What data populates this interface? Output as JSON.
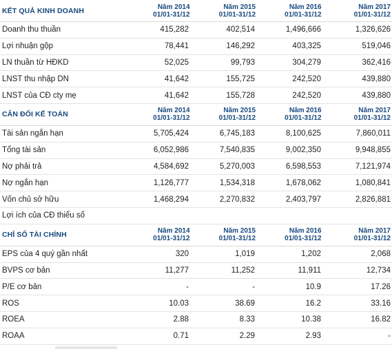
{
  "income": {
    "title": "KẾT QUẢ KINH DOANH",
    "columns": [
      {
        "year": "Năm 2014",
        "period": "01/01-31/12"
      },
      {
        "year": "Năm 2015",
        "period": "01/01-31/12"
      },
      {
        "year": "Năm 2016",
        "period": "01/01-31/12"
      },
      {
        "year": "Năm 2017",
        "period": "01/01-31/12"
      }
    ],
    "rows": [
      {
        "label": "Doanh thu thuần",
        "values": [
          "415,282",
          "402,514",
          "1,496,666",
          "1,326,626"
        ]
      },
      {
        "label": "Lợi nhuận gộp",
        "values": [
          "78,441",
          "146,292",
          "403,325",
          "519,046"
        ]
      },
      {
        "label": "LN thuần từ HĐKD",
        "values": [
          "52,025",
          "99,793",
          "304,279",
          "362,416"
        ]
      },
      {
        "label": "LNST thu nhập DN",
        "values": [
          "41,642",
          "155,725",
          "242,520",
          "439,880"
        ]
      },
      {
        "label": "LNST của CĐ cty mẹ",
        "values": [
          "41,642",
          "155,728",
          "242,520",
          "439,880"
        ]
      }
    ]
  },
  "balance": {
    "title": "CÂN ĐỐI KẾ TOÁN",
    "columns": [
      {
        "year": "Năm 2014",
        "period": "01/01-31/12"
      },
      {
        "year": "Năm 2015",
        "period": "01/01-31/12"
      },
      {
        "year": "Năm 2016",
        "period": "01/01-31/12"
      },
      {
        "year": "Năm 2017",
        "period": "01/01-31/12"
      }
    ],
    "rows": [
      {
        "label": "Tài sản ngắn hạn",
        "values": [
          "5,705,424",
          "6,745,183",
          "8,100,625",
          "7,860,011"
        ]
      },
      {
        "label": "Tổng tài sản",
        "values": [
          "6,052,986",
          "7,540,835",
          "9,002,350",
          "9,948,855"
        ]
      },
      {
        "label": "Nợ phải trả",
        "values": [
          "4,584,692",
          "5,270,003",
          "6,598,553",
          "7,121,974"
        ]
      },
      {
        "label": "Nợ ngắn hạn",
        "values": [
          "1,126,777",
          "1,534,318",
          "1,678,062",
          "1,080,841"
        ]
      },
      {
        "label": "Vốn chủ sở hữu",
        "values": [
          "1,468,294",
          "2,270,832",
          "2,403,797",
          "2,826,881"
        ]
      },
      {
        "label": "Lợi ích của CĐ thiểu số",
        "values": [
          "",
          "",
          "",
          ""
        ]
      }
    ]
  },
  "ratios": {
    "title": "CHỈ SỐ TÀI CHÍNH",
    "columns": [
      {
        "year": "Năm 2014",
        "period": "01/01-31/12"
      },
      {
        "year": "Năm 2015",
        "period": "01/01-31/12"
      },
      {
        "year": "Năm 2016",
        "period": "01/01-31/12"
      },
      {
        "year": "Năm 2017",
        "period": "01/01-31/12"
      }
    ],
    "rows": [
      {
        "label": "EPS của 4 quý gần nhất",
        "values": [
          "320",
          "1,019",
          "1,202",
          "2,068"
        ]
      },
      {
        "label": "BVPS cơ bản",
        "values": [
          "11,277",
          "11,252",
          "11,911",
          "12,734"
        ]
      },
      {
        "label": "P/E cơ bản",
        "values": [
          "-",
          "-",
          "10.9",
          "17.26"
        ]
      },
      {
        "label": "ROS",
        "values": [
          "10.03",
          "38.69",
          "16.2",
          "33.16"
        ]
      },
      {
        "label": "ROEA",
        "values": [
          "2.88",
          "8.33",
          "10.38",
          "16.82"
        ]
      },
      {
        "label": "ROAA",
        "values": [
          "0.71",
          "2.29",
          "2.93",
          "-"
        ]
      }
    ]
  }
}
